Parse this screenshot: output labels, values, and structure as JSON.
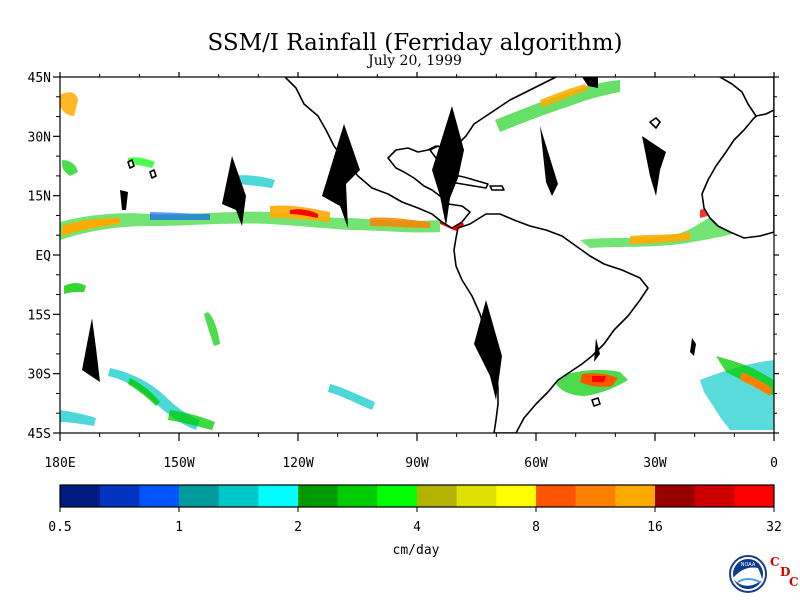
{
  "title": "SSM/I Rainfall (Ferriday algorithm)",
  "subtitle": "July 20, 1999",
  "map": {
    "lat_labels": [
      "45N",
      "30N",
      "15N",
      "EQ",
      "15S",
      "30S",
      "45S"
    ],
    "lon_labels": [
      "180E",
      "150W",
      "120W",
      "90W",
      "60W",
      "30W",
      "0"
    ],
    "lat_range": [
      -45,
      45
    ],
    "lon_range": [
      -180,
      0
    ],
    "land_color": "#ffffff",
    "coast_color": "#000000",
    "gap_color": "#000000"
  },
  "colorbar": {
    "tick_labels": [
      "0.5",
      "1",
      "2",
      "4",
      "8",
      "16",
      "32"
    ],
    "unit_label": "cm/day",
    "colors": [
      "#001a80",
      "#0033bf",
      "#0055ff",
      "#00999c",
      "#00c8c8",
      "#00ffff",
      "#009900",
      "#00cc00",
      "#00ff00",
      "#b3b300",
      "#e0e000",
      "#ffff00",
      "#ff5500",
      "#ff8000",
      "#ffaa00",
      "#990000",
      "#cc0000",
      "#ff0000"
    ]
  },
  "logo": {
    "text": "NOAA",
    "letters": [
      "C",
      "D",
      "C"
    ]
  }
}
